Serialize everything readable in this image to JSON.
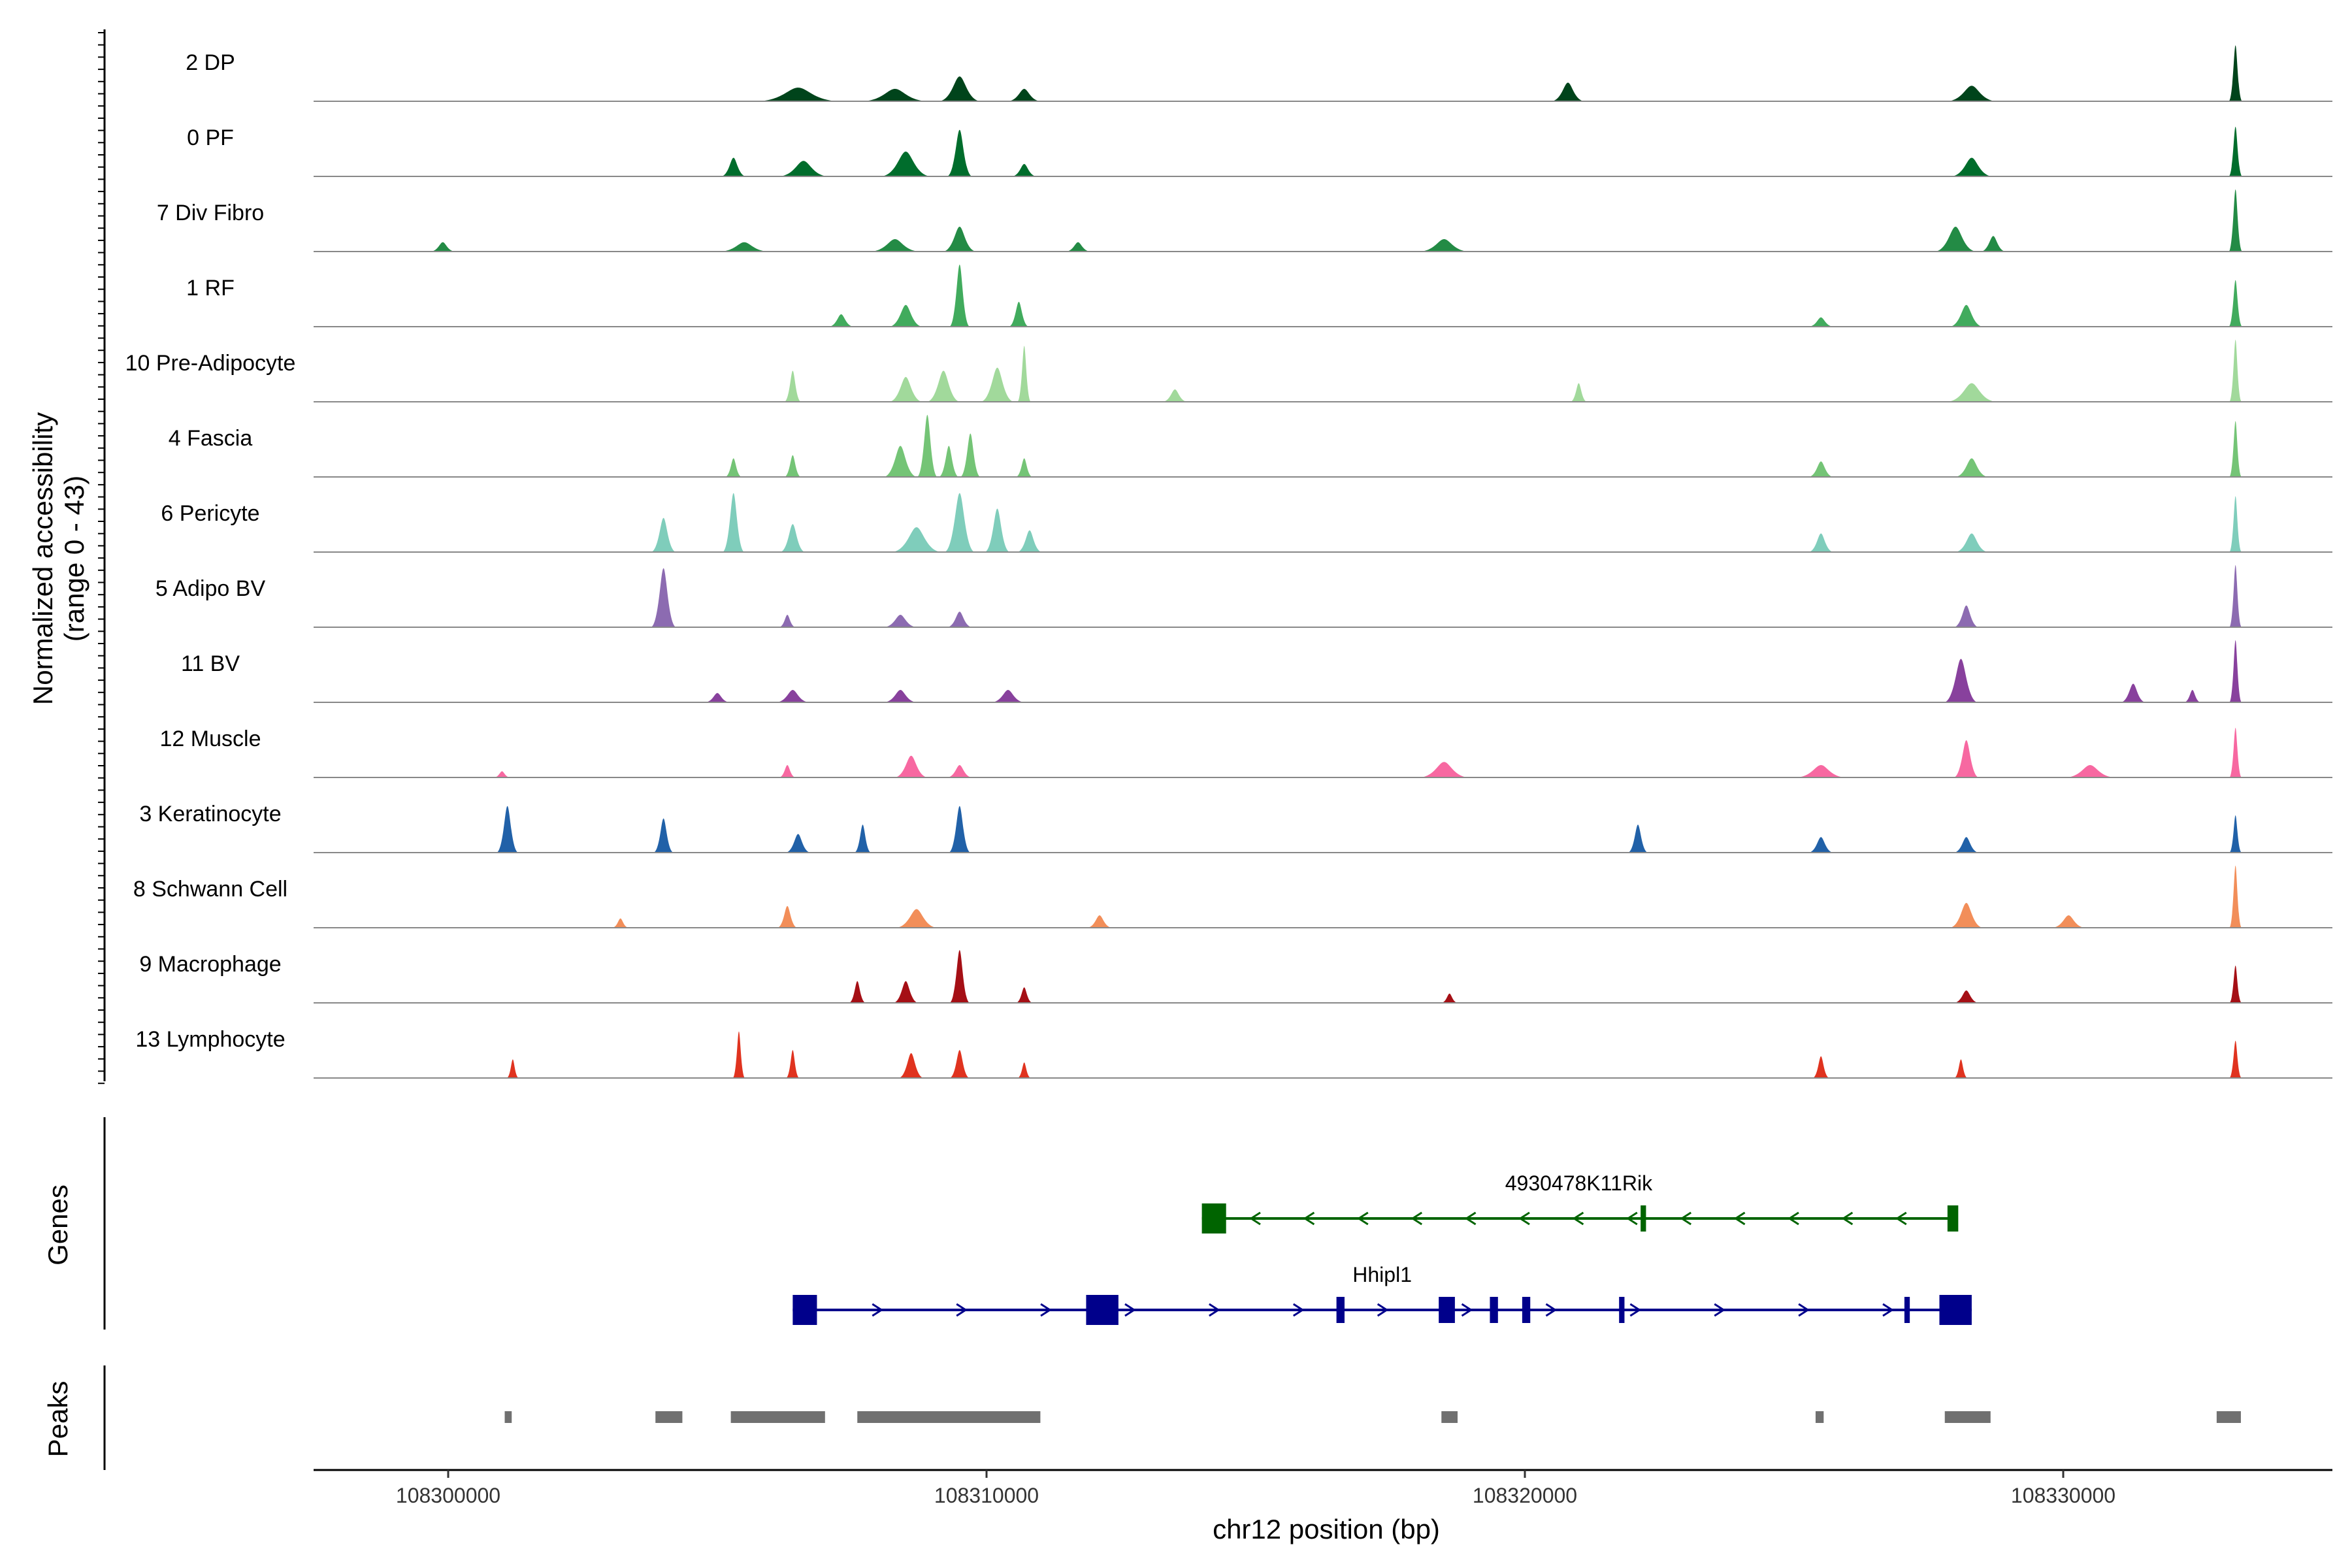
{
  "chart_data": {
    "type": "area",
    "title": "",
    "chromosome": "chr12",
    "xlabel": "chr12 position (bp)",
    "ylabel": "Normalized accessibility",
    "ylabel_range": "(range 0 - 43)",
    "xlim": [
      108297500,
      108335000
    ],
    "ylim": [
      0,
      43
    ],
    "x_ticks": [
      108300000,
      108310000,
      108320000,
      108330000
    ],
    "x_tick_labels": [
      "108300000",
      "108310000",
      "108320000",
      "108330000"
    ],
    "genes_label": "Genes",
    "peaks_label": "Peaks",
    "baseline_color": "#888888",
    "tracks": [
      {
        "name": "2 DP",
        "color": "#00441b",
        "peaks": [
          [
            108306500,
            0.22,
            500
          ],
          [
            108308300,
            0.2,
            400
          ],
          [
            108309500,
            0.4,
            250
          ],
          [
            108310700,
            0.2,
            200
          ],
          [
            108320800,
            0.3,
            200
          ],
          [
            108328300,
            0.25,
            300
          ],
          [
            108333200,
            0.9,
            80
          ]
        ]
      },
      {
        "name": "0 PF",
        "color": "#006d2c",
        "peaks": [
          [
            108305300,
            0.3,
            150
          ],
          [
            108306600,
            0.25,
            300
          ],
          [
            108308500,
            0.4,
            300
          ],
          [
            108309500,
            0.75,
            150
          ],
          [
            108310700,
            0.2,
            150
          ],
          [
            108328300,
            0.3,
            250
          ],
          [
            108333200,
            0.8,
            80
          ]
        ]
      },
      {
        "name": "7 Div Fibro",
        "color": "#238b45",
        "peaks": [
          [
            108299900,
            0.15,
            150
          ],
          [
            108305500,
            0.15,
            300
          ],
          [
            108308300,
            0.2,
            300
          ],
          [
            108309500,
            0.4,
            200
          ],
          [
            108311700,
            0.15,
            150
          ],
          [
            108318500,
            0.2,
            300
          ],
          [
            108328000,
            0.4,
            250
          ],
          [
            108328700,
            0.25,
            150
          ],
          [
            108333200,
            1.0,
            80
          ]
        ]
      },
      {
        "name": "1 RF",
        "color": "#41ab5d",
        "peaks": [
          [
            108307300,
            0.2,
            150
          ],
          [
            108308500,
            0.35,
            200
          ],
          [
            108309500,
            1.0,
            120
          ],
          [
            108310600,
            0.4,
            120
          ],
          [
            108325500,
            0.15,
            150
          ],
          [
            108328200,
            0.35,
            200
          ],
          [
            108333200,
            0.75,
            80
          ]
        ]
      },
      {
        "name": "10 Pre-Adipocyte",
        "color": "#a1d99b",
        "peaks": [
          [
            108306400,
            0.5,
            100
          ],
          [
            108308500,
            0.4,
            200
          ],
          [
            108309200,
            0.5,
            200
          ],
          [
            108310200,
            0.55,
            200
          ],
          [
            108310700,
            0.9,
            80
          ],
          [
            108313500,
            0.2,
            150
          ],
          [
            108321000,
            0.3,
            100
          ],
          [
            108328300,
            0.3,
            300
          ],
          [
            108333200,
            1.0,
            70
          ]
        ]
      },
      {
        "name": "4 Fascia",
        "color": "#74c476",
        "peaks": [
          [
            108305300,
            0.3,
            100
          ],
          [
            108306400,
            0.35,
            100
          ],
          [
            108308400,
            0.5,
            200
          ],
          [
            108308900,
            1.0,
            120
          ],
          [
            108309300,
            0.5,
            120
          ],
          [
            108309700,
            0.7,
            120
          ],
          [
            108310700,
            0.3,
            100
          ],
          [
            108325500,
            0.25,
            150
          ],
          [
            108328300,
            0.3,
            200
          ],
          [
            108333200,
            0.9,
            70
          ]
        ]
      },
      {
        "name": "6 Pericyte",
        "color": "#7fcdbb",
        "peaks": [
          [
            108304000,
            0.55,
            150
          ],
          [
            108305300,
            0.95,
            130
          ],
          [
            108306400,
            0.45,
            150
          ],
          [
            108308700,
            0.4,
            300
          ],
          [
            108309500,
            0.95,
            180
          ],
          [
            108310200,
            0.7,
            150
          ],
          [
            108310800,
            0.35,
            150
          ],
          [
            108325500,
            0.3,
            150
          ],
          [
            108328300,
            0.3,
            200
          ],
          [
            108333200,
            0.9,
            70
          ]
        ]
      },
      {
        "name": "5 Adipo BV",
        "color": "#8c6bb1",
        "peaks": [
          [
            108304000,
            0.95,
            150
          ],
          [
            108306300,
            0.2,
            100
          ],
          [
            108308400,
            0.2,
            200
          ],
          [
            108309500,
            0.25,
            150
          ],
          [
            108328200,
            0.35,
            150
          ],
          [
            108333200,
            1.0,
            70
          ]
        ]
      },
      {
        "name": "11 BV",
        "color": "#88419d",
        "peaks": [
          [
            108305000,
            0.15,
            150
          ],
          [
            108306400,
            0.2,
            200
          ],
          [
            108308400,
            0.2,
            200
          ],
          [
            108310400,
            0.2,
            200
          ],
          [
            108328100,
            0.7,
            200
          ],
          [
            108331300,
            0.3,
            150
          ],
          [
            108332400,
            0.2,
            100
          ],
          [
            108333200,
            1.0,
            70
          ]
        ]
      },
      {
        "name": "12 Muscle",
        "color": "#f768a1",
        "peaks": [
          [
            108301000,
            0.1,
            100
          ],
          [
            108306300,
            0.2,
            100
          ],
          [
            108308600,
            0.35,
            200
          ],
          [
            108309500,
            0.2,
            150
          ],
          [
            108318500,
            0.25,
            300
          ],
          [
            108325500,
            0.2,
            300
          ],
          [
            108328200,
            0.6,
            150
          ],
          [
            108330500,
            0.2,
            300
          ],
          [
            108333200,
            0.8,
            70
          ]
        ]
      },
      {
        "name": "3 Keratinocyte",
        "color": "#2161a8",
        "peaks": [
          [
            108301100,
            0.75,
            130
          ],
          [
            108304000,
            0.55,
            120
          ],
          [
            108306500,
            0.3,
            150
          ],
          [
            108307700,
            0.45,
            100
          ],
          [
            108309500,
            0.75,
            130
          ],
          [
            108322100,
            0.45,
            120
          ],
          [
            108325500,
            0.25,
            150
          ],
          [
            108328200,
            0.25,
            150
          ],
          [
            108333200,
            0.6,
            60
          ]
        ]
      },
      {
        "name": "8 Schwann Cell",
        "color": "#f28e59",
        "peaks": [
          [
            108303200,
            0.15,
            100
          ],
          [
            108306300,
            0.35,
            120
          ],
          [
            108308700,
            0.3,
            250
          ],
          [
            108312100,
            0.2,
            150
          ],
          [
            108328200,
            0.4,
            200
          ],
          [
            108330100,
            0.2,
            200
          ],
          [
            108333200,
            1.0,
            70
          ]
        ]
      },
      {
        "name": "9 Macrophage",
        "color": "#a50f15",
        "peaks": [
          [
            108307600,
            0.35,
            100
          ],
          [
            108308500,
            0.35,
            150
          ],
          [
            108309500,
            0.85,
            120
          ],
          [
            108310700,
            0.25,
            100
          ],
          [
            108318600,
            0.15,
            100
          ],
          [
            108328200,
            0.2,
            150
          ],
          [
            108333200,
            0.6,
            60
          ]
        ]
      },
      {
        "name": "13 Lymphocyte",
        "color": "#e0331f",
        "peaks": [
          [
            108301200,
            0.3,
            60
          ],
          [
            108305400,
            0.75,
            70
          ],
          [
            108306400,
            0.45,
            80
          ],
          [
            108308600,
            0.4,
            150
          ],
          [
            108309500,
            0.45,
            120
          ],
          [
            108310700,
            0.25,
            80
          ],
          [
            108325500,
            0.35,
            100
          ],
          [
            108328100,
            0.3,
            80
          ],
          [
            108333200,
            0.6,
            50
          ]
        ]
      }
    ],
    "genes": [
      {
        "name": "4930478K11Rik",
        "strand": "-",
        "color": "#006400",
        "start": 108314000,
        "end": 108328000,
        "exons": [
          [
            108314000,
            108314450
          ],
          [
            108322150,
            108322250
          ],
          [
            108327850,
            108328050
          ]
        ]
      },
      {
        "name": "Hhipl1",
        "strand": "+",
        "color": "#00008b",
        "start": 108306400,
        "end": 108328300,
        "exons": [
          [
            108306400,
            108306850
          ],
          [
            108311850,
            108312450
          ],
          [
            108316500,
            108316650
          ],
          [
            108318400,
            108318700
          ],
          [
            108319350,
            108319500
          ],
          [
            108319950,
            108320100
          ],
          [
            108321750,
            108321850
          ],
          [
            108327050,
            108327150
          ],
          [
            108327700,
            108328300
          ]
        ]
      }
    ],
    "peaks": [
      [
        108301050,
        108301180
      ],
      [
        108303850,
        108304350
      ],
      [
        108305250,
        108307000
      ],
      [
        108307600,
        108311000
      ],
      [
        108318450,
        108318750
      ],
      [
        108325400,
        108325550
      ],
      [
        108327800,
        108328650
      ],
      [
        108332850,
        108333300
      ]
    ],
    "peak_color": "#707070"
  }
}
